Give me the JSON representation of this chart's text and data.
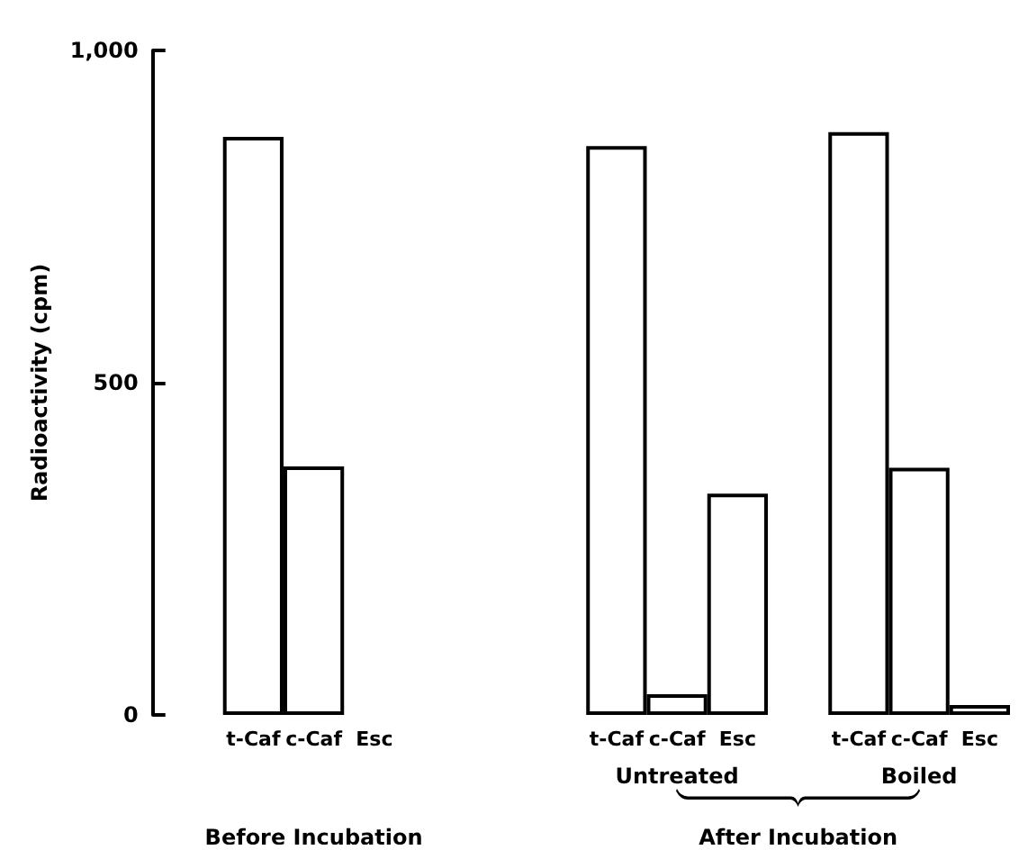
{
  "chart_data": {
    "type": "bar",
    "ylabel": "Radioactivity (cpm)",
    "categories": [
      "t-Caf",
      "c-Caf",
      "Esc",
      null,
      null,
      null,
      "t-Caf",
      "c-Caf",
      "Esc",
      null,
      "t-Caf",
      "c-Caf",
      "Esc"
    ],
    "values": [
      870,
      374,
      0,
      null,
      null,
      null,
      856,
      31,
      333,
      null,
      877,
      372,
      15
    ],
    "color": "#ffffff",
    "ylim": [
      0,
      1000
    ],
    "yticks": [
      0,
      500,
      {
        "value": 1000,
        "label": "1,000"
      }
    ],
    "grid": false,
    "annotations": [
      "Untreated",
      "Boiled",
      "Before Incubation",
      "After Incubation"
    ]
  }
}
